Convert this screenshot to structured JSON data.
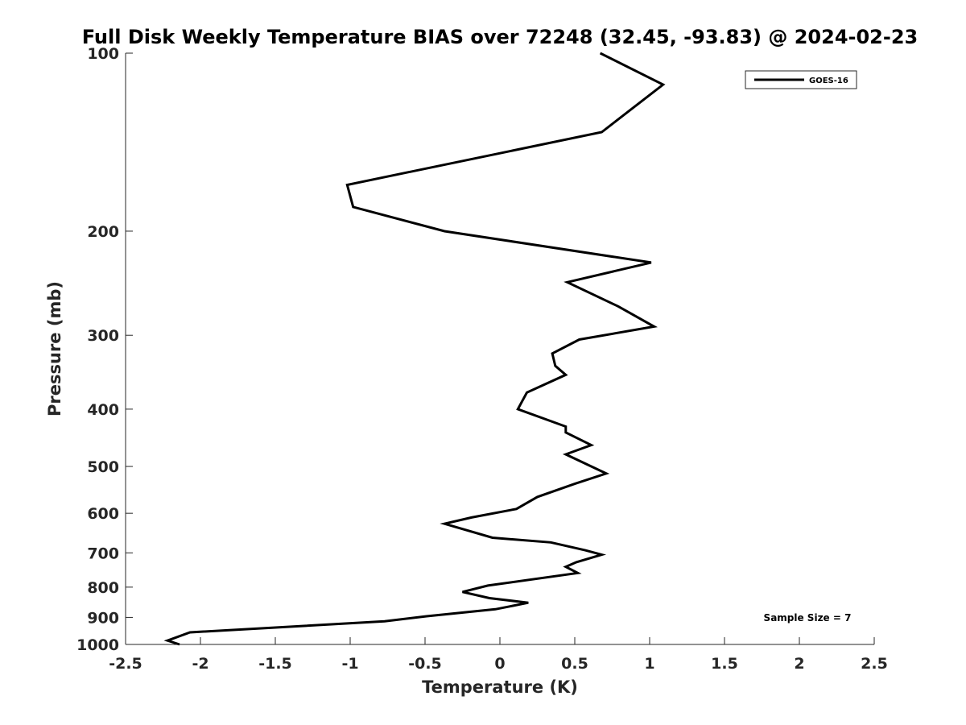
{
  "chart_data": {
    "type": "line",
    "title": "Full Disk Weekly Temperature BIAS over 72248 (32.45, -93.83) @ 2024-02-23",
    "xlabel": "Temperature (K)",
    "ylabel": "Pressure (mb)",
    "xlim": [
      -2.5,
      2.5
    ],
    "ylim": [
      1000,
      100
    ],
    "yscale": "log",
    "y_reversed": true,
    "grid": false,
    "legend_position": "top-right",
    "x_ticks": [
      "-2.5",
      "-2",
      "-1.5",
      "-1",
      "-0.5",
      "0",
      "0.5",
      "1",
      "1.5",
      "2",
      "2.5"
    ],
    "y_ticks": [
      "100",
      "200",
      "300",
      "400",
      "500",
      "600",
      "700",
      "800",
      "900",
      "1000"
    ],
    "series": [
      {
        "name": "GOES-16",
        "color": "#000000",
        "x": [
          0.67,
          1.09,
          0.68,
          -1.02,
          -0.98,
          -0.37,
          1.01,
          0.45,
          0.79,
          1.03,
          0.53,
          0.35,
          0.37,
          0.44,
          0.18,
          0.12,
          0.44,
          0.44,
          0.61,
          0.44,
          0.61,
          0.71,
          0.5,
          0.25,
          0.11,
          -0.19,
          -0.37,
          -0.05,
          0.34,
          0.57,
          0.68,
          0.51,
          0.44,
          0.52,
          -0.08,
          -0.25,
          -0.07,
          0.19,
          -0.03,
          -0.49,
          -0.77,
          -2.07,
          -2.22,
          -2.14
        ],
        "y": [
          100,
          113,
          136,
          167,
          182,
          200,
          226,
          244,
          268,
          290,
          305,
          322,
          338,
          350,
          375,
          400,
          428,
          438,
          460,
          477,
          500,
          514,
          535,
          563,
          590,
          610,
          625,
          660,
          672,
          693,
          705,
          726,
          739,
          757,
          795,
          815,
          835,
          850,
          872,
          896,
          914,
          954,
          985,
          1000
        ]
      }
    ],
    "annotations": [
      "Sample Size = 7"
    ]
  }
}
